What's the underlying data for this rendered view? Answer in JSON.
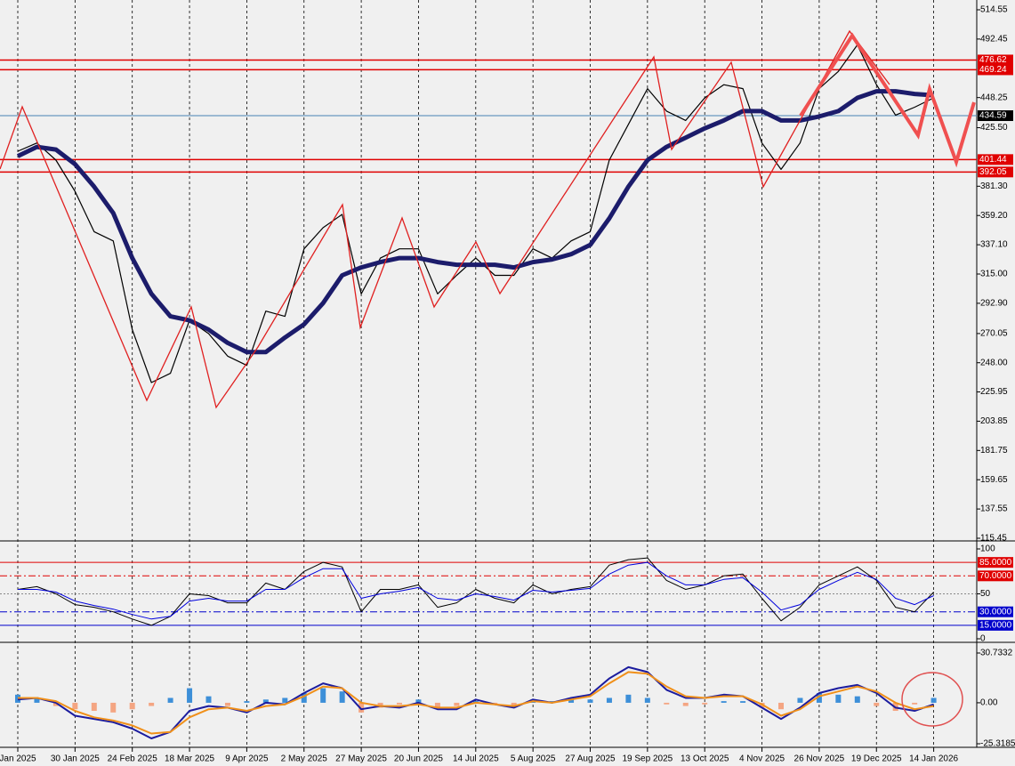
{
  "chart_data": [
    {
      "type": "line",
      "categories": [
        "Jan 2025",
        null,
        null,
        "30 Jan 2025",
        null,
        null,
        "24 Feb 2025",
        null,
        null,
        "18 Mar 2025",
        null,
        null,
        "9 Apr 2025",
        null,
        null,
        "2 May 2025",
        null,
        null,
        "27 May 2025",
        null,
        null,
        "20 Jun 2025",
        null,
        null,
        "14 Jul 2025",
        null,
        null,
        "5 Aug 2025",
        null,
        null,
        "27 Aug 2025",
        null,
        null,
        "19 Sep 2025",
        null,
        null,
        "13 Oct 2025",
        null,
        null,
        "4 Nov 2025",
        null,
        null,
        "26 Nov 2025",
        null,
        null,
        "19 Dec 2025",
        null,
        null,
        "14 Jan 2026"
      ],
      "series": [
        {
          "color": "#000000",
          "width": 1.2,
          "values": [
            407.7,
            414,
            401,
            377.5,
            347,
            340,
            273,
            233,
            240,
            280,
            270,
            253,
            246,
            287,
            283,
            334,
            350,
            360,
            300,
            327,
            334,
            334,
            300,
            314,
            327,
            314,
            314,
            334,
            327,
            340,
            347,
            401,
            428,
            455,
            438,
            431,
            448,
            458,
            455,
            414,
            394,
            414,
            455,
            468,
            488,
            458,
            435,
            441,
            448
          ]
        },
        {
          "color": "#1c1c6b",
          "width": 5,
          "values": [
            404,
            411,
            409,
            398,
            381,
            361,
            327,
            300,
            283,
            280,
            273,
            263,
            256,
            256,
            267,
            277,
            293,
            314,
            320,
            324,
            327,
            327,
            324,
            322,
            322,
            322,
            320,
            324,
            326,
            330,
            337,
            357,
            381,
            401,
            411,
            418,
            425,
            431,
            438,
            438,
            431,
            431,
            434,
            438,
            448,
            453,
            453,
            451,
            450
          ]
        }
      ],
      "ylim": [
        115.45,
        514.55
      ],
      "yticks": [
        {
          "value": 514.55,
          "label": "514.55"
        },
        {
          "value": 492.45,
          "label": "492.45"
        },
        {
          "value": 448.25,
          "label": "448.25"
        },
        {
          "value": 425.5,
          "label": "425.50"
        },
        {
          "value": 381.3,
          "label": "381.30"
        },
        {
          "value": 359.2,
          "label": "359.20"
        },
        {
          "value": 337.1,
          "label": "337.10"
        },
        {
          "value": 315,
          "label": "315.00"
        },
        {
          "value": 292.9,
          "label": "292.90"
        },
        {
          "value": 270.05,
          "label": "270.05"
        },
        {
          "value": 248,
          "label": "248.00"
        },
        {
          "value": 225.95,
          "label": "225.95"
        },
        {
          "value": 203.85,
          "label": "203.85"
        },
        {
          "value": 181.75,
          "label": "181.75"
        },
        {
          "value": 159.65,
          "label": "159.65"
        },
        {
          "value": 137.55,
          "label": "137.55"
        },
        {
          "value": 115.45,
          "label": "115.45"
        }
      ],
      "levels": [
        {
          "value": 476.62,
          "label": "476.62",
          "color": "#e00000",
          "style": "solid"
        },
        {
          "value": 469.24,
          "label": "469.24",
          "color": "#e00000",
          "style": "solid"
        },
        {
          "value": 434.59,
          "label": "434.59",
          "color": "#4682b4",
          "box": "#000000",
          "style": "solid"
        },
        {
          "value": 401.44,
          "label": "401.44",
          "color": "#e00000",
          "style": "solid"
        },
        {
          "value": 392.05,
          "label": "392.05",
          "color": "#e00000",
          "style": "solid"
        }
      ],
      "grid": true
    },
    {
      "type": "line",
      "series": [
        {
          "color": "#000000",
          "width": 1,
          "values": [
            55,
            58,
            50,
            38,
            35,
            30,
            22,
            15,
            25,
            50,
            48,
            40,
            40,
            62,
            55,
            75,
            85,
            80,
            30,
            55,
            55,
            60,
            35,
            40,
            55,
            45,
            40,
            60,
            50,
            55,
            58,
            82,
            88,
            90,
            65,
            55,
            60,
            70,
            72,
            45,
            20,
            35,
            60,
            70,
            80,
            65,
            35,
            30,
            52
          ]
        },
        {
          "color": "#0000dd",
          "width": 1,
          "values": [
            55,
            55,
            52,
            42,
            37,
            33,
            27,
            22,
            25,
            42,
            45,
            42,
            42,
            55,
            55,
            68,
            78,
            78,
            45,
            50,
            53,
            57,
            45,
            43,
            50,
            47,
            43,
            54,
            52,
            54,
            56,
            72,
            82,
            85,
            70,
            60,
            60,
            66,
            68,
            52,
            32,
            38,
            55,
            65,
            74,
            66,
            45,
            38,
            48
          ]
        }
      ],
      "ylim": [
        0,
        100
      ],
      "yticks": [
        100,
        50,
        0
      ],
      "levels": [
        {
          "value": 85,
          "label": "85.0000",
          "color": "#e00000",
          "style": "solid"
        },
        {
          "value": 70,
          "label": "70.0000",
          "color": "#e00000",
          "style": "dashdot"
        },
        {
          "value": 30,
          "label": "30.0000",
          "color": "#0000cc",
          "style": "dashdot"
        },
        {
          "value": 15,
          "label": "15.0000",
          "color": "#0000cc",
          "style": "solid"
        }
      ]
    },
    {
      "type": "macd",
      "histogram": {
        "values": [
          5,
          3,
          -2,
          -4,
          -5,
          -6,
          -4,
          -2,
          3,
          9,
          4,
          -2,
          1,
          2,
          3,
          6,
          9,
          7,
          -6,
          -3,
          -1,
          2,
          -3,
          -2,
          1,
          -1,
          -2,
          2,
          1,
          2,
          2,
          3,
          5,
          3,
          -1,
          -2,
          -1,
          1,
          1,
          -3,
          -4,
          3,
          6,
          5,
          4,
          -2,
          -5,
          -1,
          3
        ],
        "colors": [
          "#3d8fd8",
          "#f4a582"
        ]
      },
      "series": [
        {
          "color": "#1c1c9e",
          "width": 2,
          "values": [
            2,
            3,
            0,
            -8,
            -10,
            -12,
            -16,
            -22,
            -18,
            -5,
            -2,
            -3,
            -6,
            0,
            -1,
            6,
            12,
            9,
            -4,
            -2,
            -3,
            0,
            -4,
            -4,
            2,
            -1,
            -3,
            2,
            0,
            3,
            5,
            15,
            22,
            19,
            8,
            3,
            3,
            5,
            4,
            -3,
            -10,
            -3,
            6,
            9,
            11,
            6,
            -3,
            -5,
            -1
          ]
        },
        {
          "color": "#f0901a",
          "width": 2,
          "values": [
            3,
            3,
            1,
            -5,
            -9,
            -11,
            -14,
            -19,
            -18,
            -9,
            -4,
            -3,
            -5,
            -2,
            -1,
            4,
            10,
            9,
            0,
            -2,
            -2,
            -1,
            -3,
            -3,
            0,
            -1,
            -2,
            1,
            0,
            2,
            4,
            12,
            19,
            18,
            10,
            4,
            3,
            4,
            4,
            -1,
            -8,
            -4,
            4,
            7,
            10,
            7,
            0,
            -4,
            -2
          ]
        }
      ],
      "ylim": [
        -25.3185,
        30.7332
      ],
      "yticks": [
        {
          "value": 30.7332,
          "label": "30.7332"
        },
        {
          "value": 0,
          "label": "0.00"
        },
        {
          "value": -25.3185,
          "label": "-25.3185"
        }
      ]
    }
  ]
}
